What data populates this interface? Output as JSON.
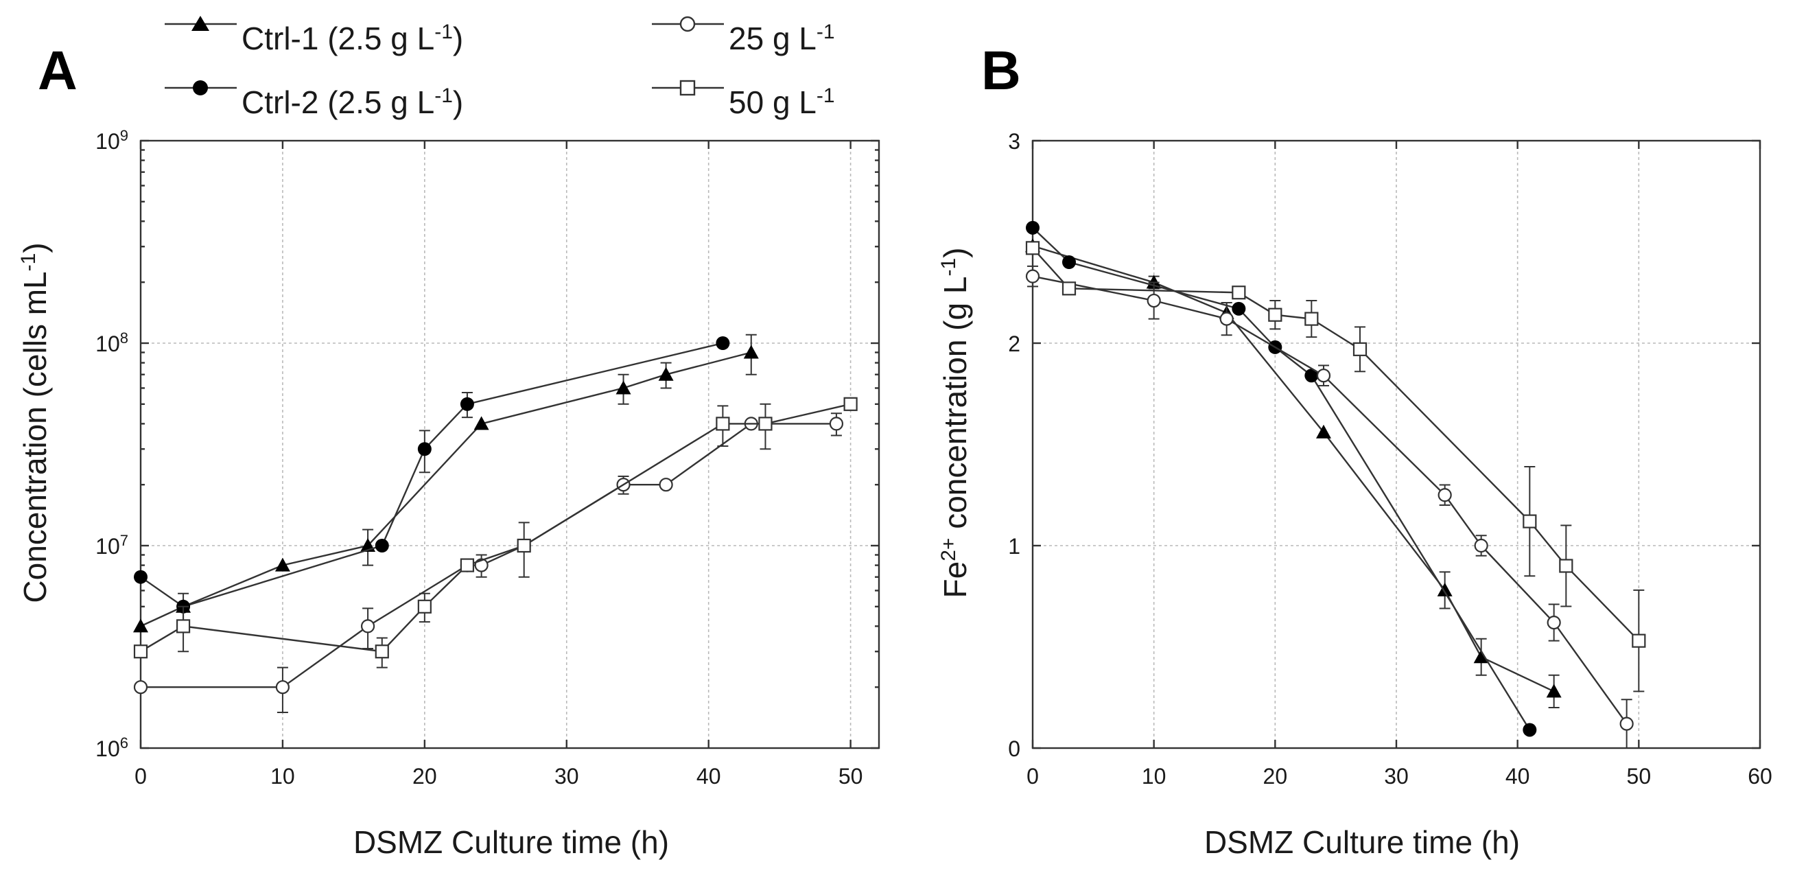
{
  "legend": {
    "ctrl1": {
      "label": "Ctrl-1 (2.5 g L",
      "sup": "-1",
      "tail": ")",
      "marker": "triangle-filled"
    },
    "ctrl2": {
      "label": "Ctrl-2 (2.5 g L",
      "sup": "-1",
      "tail": ")",
      "marker": "circle-filled"
    },
    "c25": {
      "label": "25 g L",
      "sup": "-1",
      "tail": "",
      "marker": "circle-open"
    },
    "c50": {
      "label": "50 g L",
      "sup": "-1",
      "tail": "",
      "marker": "square-open"
    }
  },
  "colors": {
    "line": "#333333",
    "grid": "#b9b9b9"
  },
  "chart_data": [
    {
      "panel_label": "A",
      "type": "line",
      "xlabel": "DSMZ Culture time (h)",
      "ylabel": {
        "main": "Concentration (cells mL",
        "sup": "-1",
        "tail": ")"
      },
      "yscale": "log",
      "xlim": [
        0,
        52
      ],
      "ylim": [
        1000000,
        1000000000
      ],
      "xticks": [
        "0",
        "10",
        "20",
        "30",
        "40",
        "50"
      ],
      "xtick_values": [
        0,
        10,
        20,
        30,
        40,
        50
      ],
      "yticks": [
        {
          "base": "10",
          "exp": "6",
          "value": 1000000
        },
        {
          "base": "10",
          "exp": "7",
          "value": 10000000
        },
        {
          "base": "10",
          "exp": "8",
          "value": 100000000
        },
        {
          "base": "10",
          "exp": "9",
          "value": 1000000000
        }
      ],
      "grid": true,
      "series": [
        {
          "name": "Ctrl-1 (2.5 g L-1)",
          "marker": "triangle-filled",
          "x": [
            0,
            3,
            10,
            16,
            24,
            34,
            37,
            43
          ],
          "y": [
            4000000,
            5000000,
            8000000,
            10000000,
            40000000,
            60000000,
            70000000,
            90000000
          ],
          "err": [
            0,
            0,
            0,
            2000000,
            0,
            10000000,
            10000000,
            20000000
          ]
        },
        {
          "name": "Ctrl-2 (2.5 g L-1)",
          "marker": "circle-filled",
          "x": [
            0,
            3,
            17,
            20,
            23,
            41
          ],
          "y": [
            7000000,
            5000000,
            10000000,
            30000000,
            50000000,
            100000000
          ],
          "err": [
            0,
            800000,
            0,
            7000000,
            7000000,
            0
          ]
        },
        {
          "name": "25 g L-1",
          "marker": "circle-open",
          "x": [
            0,
            10,
            16,
            23,
            24,
            27,
            34,
            37,
            43,
            49
          ],
          "y": [
            2000000,
            2000000,
            4000000,
            8000000,
            8000000,
            10000000,
            20000000,
            20000000,
            40000000,
            40000000
          ],
          "err": [
            0,
            500000,
            900000,
            0,
            1000000,
            3000000,
            2000000,
            0,
            0,
            5000000
          ]
        },
        {
          "name": "50 g L-1",
          "marker": "square-open",
          "x": [
            0,
            3,
            17,
            20,
            23,
            27,
            41,
            44,
            50
          ],
          "y": [
            3000000,
            4000000,
            3000000,
            5000000,
            8000000,
            10000000,
            40000000,
            40000000,
            50000000
          ],
          "err": [
            0,
            1000000,
            500000,
            800000,
            500000,
            0,
            9000000,
            10000000,
            0
          ]
        }
      ]
    },
    {
      "panel_label": "B",
      "type": "line",
      "xlabel": "DSMZ Culture time (h)",
      "ylabel": {
        "pre": "Fe",
        "presup": "2+",
        "main": "  concentration (g L",
        "sup": "-1",
        "tail": ")"
      },
      "yscale": "linear",
      "xlim": [
        0,
        60
      ],
      "ylim": [
        0,
        3
      ],
      "xticks": [
        "0",
        "10",
        "20",
        "30",
        "40",
        "50",
        "60"
      ],
      "xtick_values": [
        0,
        10,
        20,
        30,
        40,
        50,
        60
      ],
      "yticks": [
        {
          "label": "0",
          "value": 0
        },
        {
          "label": "1",
          "value": 1
        },
        {
          "label": "2",
          "value": 2
        },
        {
          "label": "3",
          "value": 3
        }
      ],
      "grid": true,
      "series": [
        {
          "name": "Ctrl-1 (2.5 g L-1)",
          "marker": "triangle-filled",
          "x": [
            0,
            10,
            16,
            24,
            34,
            37,
            43
          ],
          "y": [
            2.48,
            2.3,
            2.15,
            1.56,
            0.78,
            0.45,
            0.28
          ],
          "err": [
            0,
            0.03,
            0.05,
            0,
            0.09,
            0.09,
            0.08
          ]
        },
        {
          "name": "Ctrl-2 (2.5 g L-1)",
          "marker": "circle-filled",
          "x": [
            0,
            3,
            17,
            20,
            23,
            41
          ],
          "y": [
            2.57,
            2.4,
            2.17,
            1.98,
            1.84,
            0.09
          ],
          "err": [
            0,
            0,
            0,
            0,
            0,
            0
          ]
        },
        {
          "name": "25 g L-1",
          "marker": "circle-open",
          "x": [
            0,
            10,
            16,
            24,
            34,
            37,
            43,
            49
          ],
          "y": [
            2.33,
            2.21,
            2.12,
            1.84,
            1.25,
            1.0,
            0.62,
            0.12
          ],
          "err": [
            0.05,
            0.09,
            0.08,
            0.05,
            0.05,
            0.05,
            0.09,
            0.12
          ]
        },
        {
          "name": "50 g L-1",
          "marker": "square-open",
          "x": [
            0,
            3,
            17,
            20,
            23,
            27,
            41,
            44,
            50
          ],
          "y": [
            2.47,
            2.27,
            2.25,
            2.14,
            2.12,
            1.97,
            1.12,
            0.9,
            0.53
          ],
          "err": [
            0,
            0,
            0,
            0.07,
            0.09,
            0.11,
            0.27,
            0.2,
            0.25
          ]
        }
      ]
    }
  ]
}
